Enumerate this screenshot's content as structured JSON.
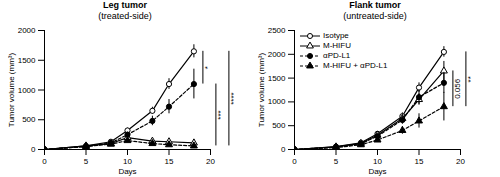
{
  "chart_data": [
    {
      "type": "line",
      "title": "Leg tumor",
      "subtitle": "(treated-side)",
      "x_label": "Days",
      "y_label": "Tumor volume (mm³)",
      "xlim": [
        0,
        20
      ],
      "xticks": [
        0,
        5,
        10,
        15,
        20
      ],
      "ylim": [
        0,
        2000
      ],
      "yticks": [
        0,
        500,
        1000,
        1500,
        2000
      ],
      "x": [
        0,
        5,
        8,
        10,
        13,
        15,
        18
      ],
      "series": [
        {
          "name": "Isotype",
          "color": "#000000",
          "marker": "open-circle",
          "line_style": "solid",
          "values": [
            0,
            60,
            130,
            320,
            650,
            1100,
            1650
          ],
          "errors": [
            0,
            10,
            20,
            40,
            60,
            90,
            110
          ]
        },
        {
          "name": "M-HIFU",
          "color": "#000000",
          "marker": "open-triangle",
          "line_style": "solid",
          "values": [
            0,
            60,
            100,
            200,
            140,
            130,
            110
          ],
          "errors": [
            0,
            10,
            15,
            30,
            30,
            40,
            60
          ]
        },
        {
          "name": "αPD-L1",
          "color": "#000000",
          "marker": "filled-circle",
          "line_style": "dashed",
          "values": [
            0,
            50,
            110,
            250,
            480,
            720,
            1100
          ],
          "errors": [
            0,
            10,
            20,
            40,
            80,
            120,
            250
          ]
        },
        {
          "name": "M-HIFU + αPD-L1",
          "color": "#000000",
          "marker": "filled-triangle",
          "line_style": "dashed",
          "values": [
            0,
            50,
            90,
            150,
            100,
            80,
            60
          ],
          "errors": [
            0,
            10,
            15,
            30,
            30,
            30,
            30
          ]
        }
      ],
      "comparisons": [
        {
          "from": "Isotype",
          "to": "αPD-L1",
          "label": "*"
        },
        {
          "from": "αPD-L1",
          "to": "M-HIFU + αPD-L1",
          "label": "***"
        },
        {
          "from": "Isotype",
          "to": "M-HIFU + αPD-L1",
          "label": "****"
        }
      ]
    },
    {
      "type": "line",
      "title": "Flank tumor",
      "subtitle": "(untreated-side)",
      "x_label": "Days",
      "y_label": "Tumor volume (mm³)",
      "xlim": [
        0,
        20
      ],
      "xticks": [
        0,
        5,
        10,
        15,
        20
      ],
      "ylim": [
        0,
        2500
      ],
      "yticks": [
        0,
        500,
        1000,
        1500,
        2000,
        2500
      ],
      "legend": "top left",
      "x": [
        0,
        5,
        8,
        10,
        13,
        15,
        18
      ],
      "series": [
        {
          "name": "Isotype",
          "color": "#000000",
          "marker": "open-circle",
          "line_style": "solid",
          "values": [
            0,
            60,
            140,
            330,
            700,
            1300,
            2050
          ],
          "errors": [
            0,
            10,
            20,
            40,
            70,
            100,
            110
          ]
        },
        {
          "name": "M-HIFU",
          "color": "#000000",
          "marker": "open-triangle",
          "line_style": "solid",
          "values": [
            0,
            55,
            130,
            300,
            650,
            1050,
            1650
          ],
          "errors": [
            0,
            10,
            20,
            40,
            80,
            120,
            200
          ]
        },
        {
          "name": "αPD-L1",
          "color": "#000000",
          "marker": "filled-circle",
          "line_style": "dashed",
          "values": [
            0,
            50,
            120,
            280,
            620,
            1100,
            1400
          ],
          "errors": [
            0,
            10,
            20,
            40,
            90,
            150,
            220
          ]
        },
        {
          "name": "M-HIFU + αPD-L1",
          "color": "#000000",
          "marker": "filled-triangle",
          "line_style": "dashed",
          "values": [
            0,
            40,
            100,
            200,
            400,
            600,
            900
          ],
          "errors": [
            0,
            10,
            15,
            30,
            80,
            150,
            300
          ]
        }
      ],
      "comparisons": [
        {
          "from": "M-HIFU",
          "to": "M-HIFU + αPD-L1",
          "label": "0.056"
        },
        {
          "from": "Isotype",
          "to": "M-HIFU + αPD-L1",
          "label": "**"
        }
      ]
    }
  ]
}
